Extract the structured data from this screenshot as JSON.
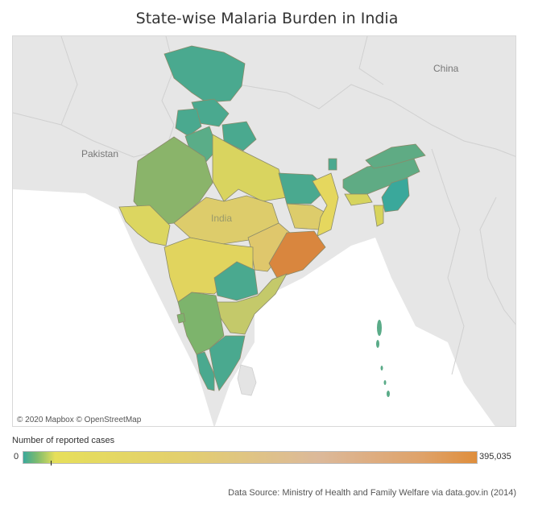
{
  "title": "State-wise Malaria Burden in India",
  "map": {
    "labels": {
      "pakistan": "Pakistan",
      "china": "China",
      "india": "India"
    },
    "attribution": "© 2020 Mapbox  © OpenStreetMap",
    "colors": {
      "low": "#3aa89b",
      "mid_low": "#7dbb6e",
      "mid": "#e6df5a",
      "mid_high": "#e3cf6e",
      "high": "#df8e3c",
      "land": "#e4e4e4",
      "water": "#ffffff"
    }
  },
  "legend": {
    "title": "Number of reported cases",
    "min": "0",
    "max": "395,035"
  },
  "source": "Data Source: Ministry of Health and Family Welfare via data.gov.in (2014)"
}
